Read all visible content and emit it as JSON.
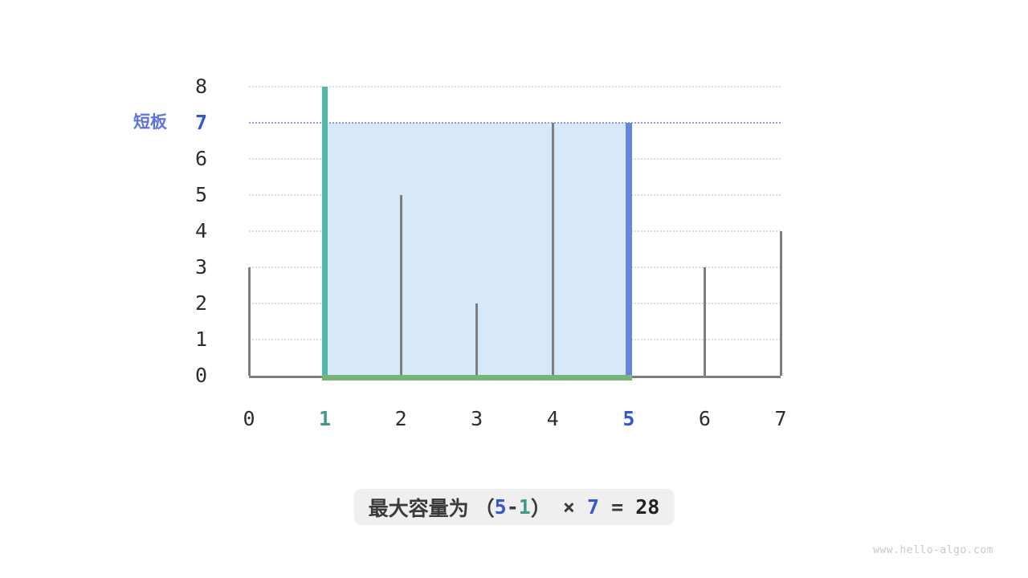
{
  "colors": {
    "teal_bar": "#4FB9AB",
    "teal_text": "#3D9B8B",
    "blue_bar": "#6684E1",
    "blue_text": "#3556D8",
    "periwinkle_label": "#5C74E0",
    "water_line": "#8D9EE9",
    "gray_bar": "#7E7E7E",
    "axis": "#7E7E7E",
    "grid": "#DCDCDC",
    "shade": "#D7E9F8",
    "green_base": "#76B578",
    "formula_bg": "#EFEFEF",
    "text_dark": "#3A3A3A",
    "tick_text": "#2E2E2E",
    "watermark": "#C9C9C9"
  },
  "annotation": {
    "short_board_label": "短板"
  },
  "watermark": {
    "text": "www.hello-algo.com"
  },
  "formula": {
    "parts": [
      {
        "text": "最大容量为 （",
        "style": "cjk"
      },
      {
        "text": "5",
        "style": "num-blue"
      },
      {
        "text": "-",
        "style": "num-dark"
      },
      {
        "text": "1",
        "style": "num-teal"
      },
      {
        "text": "）",
        "style": "cjk"
      },
      {
        "text": " × ",
        "style": "num-dark"
      },
      {
        "text": "7",
        "style": "num-blue"
      },
      {
        "text": " = ",
        "style": "num-dark"
      },
      {
        "text": "28",
        "style": "num-darkbold"
      }
    ]
  },
  "chart_data": {
    "type": "bar",
    "x": [
      0,
      1,
      2,
      3,
      4,
      5,
      6,
      7
    ],
    "heights": [
      3,
      8,
      5,
      2,
      7,
      7,
      3,
      4
    ],
    "bars": [
      {
        "x": 0,
        "height": 3,
        "role": "plain"
      },
      {
        "x": 1,
        "height": 8,
        "role": "left-pointer"
      },
      {
        "x": 2,
        "height": 5,
        "role": "plain"
      },
      {
        "x": 3,
        "height": 2,
        "role": "plain"
      },
      {
        "x": 4,
        "height": 7,
        "role": "plain"
      },
      {
        "x": 5,
        "height": 7,
        "role": "right-pointer"
      },
      {
        "x": 6,
        "height": 3,
        "role": "plain"
      },
      {
        "x": 7,
        "height": 4,
        "role": "plain"
      }
    ],
    "xlim": [
      0,
      7
    ],
    "ylim": [
      0,
      8
    ],
    "x_ticks": [
      {
        "label": "0",
        "highlight": null
      },
      {
        "label": "1",
        "highlight": "teal"
      },
      {
        "label": "2",
        "highlight": null
      },
      {
        "label": "3",
        "highlight": null
      },
      {
        "label": "4",
        "highlight": null
      },
      {
        "label": "5",
        "highlight": "blue"
      },
      {
        "label": "6",
        "highlight": null
      },
      {
        "label": "7",
        "highlight": null
      }
    ],
    "y_ticks": [
      {
        "label": "8",
        "highlight": null
      },
      {
        "label": "7",
        "highlight": "blue"
      },
      {
        "label": "6",
        "highlight": null
      },
      {
        "label": "5",
        "highlight": null
      },
      {
        "label": "4",
        "highlight": null
      },
      {
        "label": "3",
        "highlight": null
      },
      {
        "label": "2",
        "highlight": null
      },
      {
        "label": "1",
        "highlight": null
      },
      {
        "label": "0",
        "highlight": null
      }
    ],
    "water_level": 7,
    "shaded_region": {
      "x_from": 1,
      "x_to": 5,
      "y_from": 0,
      "y_to": 7
    },
    "grid": "horizontal-dotted",
    "legend_position": "none"
  }
}
